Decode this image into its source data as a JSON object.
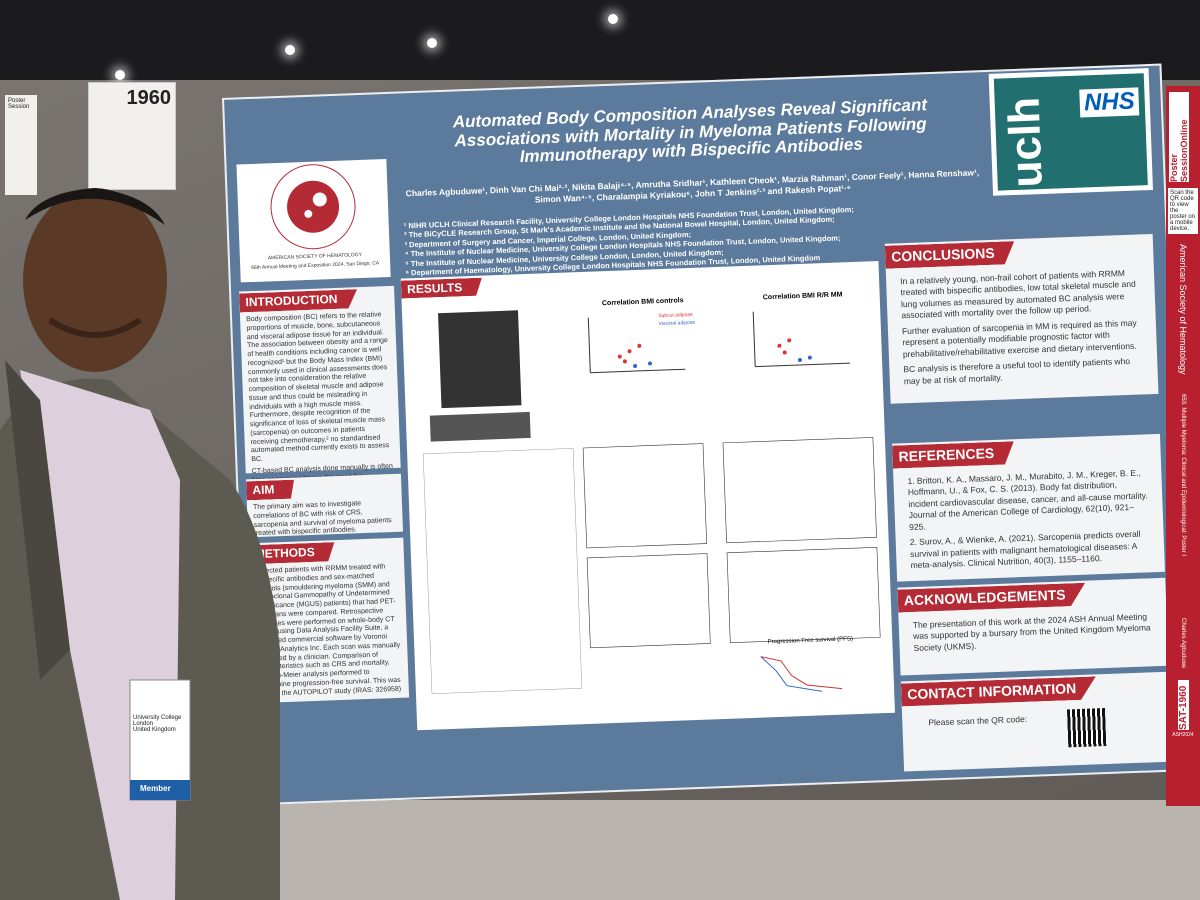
{
  "board": {
    "number": "1960",
    "code": "SAT-1960",
    "header": "Poster Session"
  },
  "side_banner": {
    "brand": "Poster SessionOnline",
    "qr_note": "Scan the QR code to view the poster on a mobile device.",
    "society": "American Society of Hematology",
    "session": "653. Multiple Myeloma: Clinical and Epidemiological: Poster I",
    "presenter": "Charles Agbuduwe",
    "tag": "ASH2024"
  },
  "poster": {
    "title": "Automated Body Composition Analyses Reveal Significant Associations with Mortality in Myeloma Patients Following Immunotherapy with Bispecific Antibodies",
    "authors": "Charles Agbuduwe¹, Dinh Van Chi Mai²·³, Nikita Balaji⁴·⁵, Amrutha Sridhar¹, Kathleen Cheok¹, Marzia Rahman¹, Conor Feely¹, Hanna Renshaw¹, Simon Wan⁴·⁵, Charalampia Kyriakou⁶, John T Jenkins²·³ and Rakesh Popat¹·⁶",
    "affiliations": [
      "¹ NIHR UCLH Clinical Research Facility, University College London Hospitals NHS Foundation Trust, London, United Kingdom;",
      "² The BiCyCLE Research Group, St Mark's Academic Institute and the National Bowel Hospital, London, United Kingdom;",
      "³ Department of Surgery and Cancer, Imperial College, London, United Kingdom;",
      "⁴ The Institute of Nuclear Medicine, University College London Hospitals NHS Foundation Trust, London, United Kingdom;",
      "⁵ The Institute of Nuclear Medicine, University College London, London, United Kingdom;",
      "⁶ Department of Haematology, University College London Hospitals NHS Foundation Trust, London, United Kingdom"
    ],
    "society": "AMERICAN SOCIETY OF HEMATOLOGY",
    "meeting": "66th Annual Meeting and Exposition 2024, San Diego, CA",
    "logo_text": "uclh",
    "nhs": "NHS",
    "introduction": {
      "heading": "INTRODUCTION",
      "paragraphs": [
        "Body composition (BC) refers to the relative proportions of muscle, bone, subcutaneous and visceral adipose tissue for an individual. The association between obesity and a range of health conditions including cancer is well recognized¹ but the Body Mass Index (BMI) commonly used in clinical assessments does not take into consideration the relative composition of skeletal muscle and adipose tissue and thus could be misleading in individuals with a high muscle mass. Furthermore, despite recognition of the significance of loss of skeletal muscle mass (sarcopenia) on outcomes in patients receiving chemotherapy,² no standardised automated method currently exists to assess BC.",
        "CT-based BC analysis done manually is often time-consuming hence the need for automated analyses based on deep learning algorithms."
      ]
    },
    "aim": {
      "heading": "AIM",
      "text": "The primary aim was to investigate correlations of BC with risk of CRS, sarcopenia and survival of myeloma patients treated with bispecific antibodies."
    },
    "methods": {
      "heading": "METHODS",
      "text": "Selected patients with RRMM treated with bispecific antibodies and sex-matched controls (smouldering myeloma (SMM) and Monoclonal Gammopathy of Undetermined Significance (MGUS) patients) that had PET-CT scans were compared. Retrospective analyses were performed on whole-body CT scans using Data Analysis Facility Suite, a validated commercial software by Voronoi Health Analytics Inc. Each scan was manually reviewed by a clinician. Comparison of characteristics such as CRS and mortality, Kaplan-Meier analysis performed to determine progression-free survival. This was part of the AUTOPILOT study (IRAS: 326958)"
    },
    "results": {
      "heading": "RESULTS",
      "chart_titles": [
        "Correlation BMI controls",
        "Correlation BMI R/R MM",
        "Progression Free survival (PFS)"
      ],
      "legend": [
        "Subcut adipose",
        "Visceral adipose"
      ]
    },
    "conclusions": {
      "heading": "CONCLUSIONS",
      "paragraphs": [
        "In a relatively young, non-frail cohort of patients with RRMM treated with bispecific antibodies, low total skeletal muscle and lung volumes as measured by automated BC analysis were associated with mortality over the follow up period.",
        "Further evaluation of sarcopenia in MM is required as this may represent a potentially modifiable prognostic factor with prehabilitative/rehabilitative exercise and dietary interventions.",
        "BC analysis is therefore a useful tool to identify patients who may be at risk of mortality."
      ]
    },
    "references": {
      "heading": "REFERENCES",
      "items": [
        "1. Britton, K. A., Massaro, J. M., Murabito, J. M., Kreger, B. E., Hoffmann, U., & Fox, C. S. (2013). Body fat distribution, incident cardiovascular disease, cancer, and all-cause mortality. Journal of the American College of Cardiology, 62(10), 921–925.",
        "2. Surov, A., & Wienke, A. (2021). Sarcopenia predicts overall survival in patients with malignant hematological diseases: A meta-analysis. Clinical Nutrition, 40(3), 1155–1160."
      ]
    },
    "acknowledgements": {
      "heading": "ACKNOWLEDGEMENTS",
      "text": "The presentation of this work at the 2024 ASH Annual Meeting was supported by a bursary from the United Kingdom Myeloma Society (UKMS)."
    },
    "contact": {
      "heading": "CONTACT INFORMATION",
      "text": "Please scan the QR code:"
    }
  },
  "badge": {
    "institution": "University College London",
    "country": "United Kingdom",
    "status": "Member"
  }
}
